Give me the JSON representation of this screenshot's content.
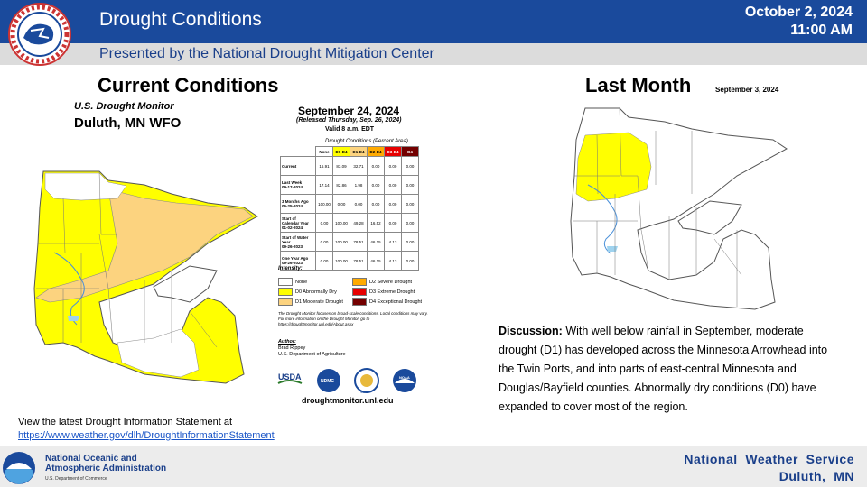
{
  "header": {
    "title": "Drought Conditions",
    "date": "October 2, 2024",
    "time": "11:00 AM",
    "subtitle": "Presented by the National Drought Mitigation Center",
    "logo_icon": "nws-logo-icon"
  },
  "current": {
    "heading": "Current Conditions",
    "map_title": "U.S. Drought Monitor",
    "map_subtitle": "Duluth, MN WFO",
    "monitor_date": "September 24, 2024",
    "released": "(Released Thursday, Sep. 26, 2024)",
    "valid": "Valid 8 a.m. EDT",
    "table_title": "Drought Conditions (Percent Area)",
    "table_headers": [
      "None",
      "D0-D4",
      "D1-D4",
      "D2-D4",
      "D3-D4",
      "D4"
    ],
    "table_rows": [
      {
        "label": "Current",
        "sub": "",
        "values": [
          "16.91",
          "83.09",
          "32.71",
          "0.00",
          "0.00",
          "0.00"
        ]
      },
      {
        "label": "Last Week",
        "sub": "09-17-2024",
        "values": [
          "17.14",
          "82.86",
          "1.98",
          "0.00",
          "0.00",
          "0.00"
        ]
      },
      {
        "label": "3 Months Ago",
        "sub": "06-25-2024",
        "values": [
          "100.00",
          "0.00",
          "0.00",
          "0.00",
          "0.00",
          "0.00"
        ]
      },
      {
        "label": "Start of Calendar Year",
        "sub": "01-02-2024",
        "values": [
          "0.00",
          "100.00",
          "49.28",
          "16.52",
          "0.00",
          "0.00"
        ]
      },
      {
        "label": "Start of Water Year",
        "sub": "09-26-2023",
        "values": [
          "0.00",
          "100.00",
          "78.51",
          "46.15",
          "4.13",
          "0.00"
        ]
      },
      {
        "label": "One Year Ago",
        "sub": "09-26-2023",
        "values": [
          "0.00",
          "100.00",
          "78.51",
          "46.15",
          "4.13",
          "0.00"
        ]
      }
    ],
    "intensity_label": "Intensity:",
    "legend": [
      {
        "label": "None",
        "color": "#ffffff"
      },
      {
        "label": "D0 Abnormally Dry",
        "color": "#ffff00"
      },
      {
        "label": "D1 Moderate Drought",
        "color": "#fcd37f"
      },
      {
        "label": "D2 Severe Drought",
        "color": "#ffaa00"
      },
      {
        "label": "D3 Extreme Drought",
        "color": "#e60000"
      },
      {
        "label": "D4 Exceptional Drought",
        "color": "#730000"
      }
    ],
    "note": "The Drought Monitor focuses on broad-scale conditions. Local conditions may vary. For more information on the Drought Monitor, go to https://droughtmonitor.unl.edu/About.aspx",
    "author_label": "Author:",
    "author_name": "Brad Rippey",
    "author_org": "U.S. Department of Agriculture",
    "logos": [
      "USDA",
      "NDMC",
      "NIDIS",
      "NOAA"
    ],
    "url": "droughtmonitor.unl.edu"
  },
  "last_month": {
    "heading": "Last Month",
    "date": "September 3, 2024"
  },
  "discussion": {
    "label": "Discussion:",
    "text": " With well below rainfall in September, moderate drought (D1) has developed across the Minnesota Arrowhead into the Twin Ports, and into parts of east-central Minnesota and Douglas/Bayfield counties. Abnormally dry conditions (D0) have expanded to cover most of the region."
  },
  "links": {
    "intro": "View the latest Drought Information Statement at",
    "url": "https://www.weather.gov/dlh/DroughtInformationStatement"
  },
  "footer": {
    "noaa_line1": "National Oceanic and",
    "noaa_line2": "Atmospheric Administration",
    "noaa_sub": "U.S. Department of Commerce",
    "org": "National  Weather  Service",
    "office": "Duluth,  MN"
  },
  "colors": {
    "header_blue": "#1a4a9c",
    "d0": "#ffff00",
    "d1": "#fcd37f",
    "water": "#9fd3ef"
  }
}
